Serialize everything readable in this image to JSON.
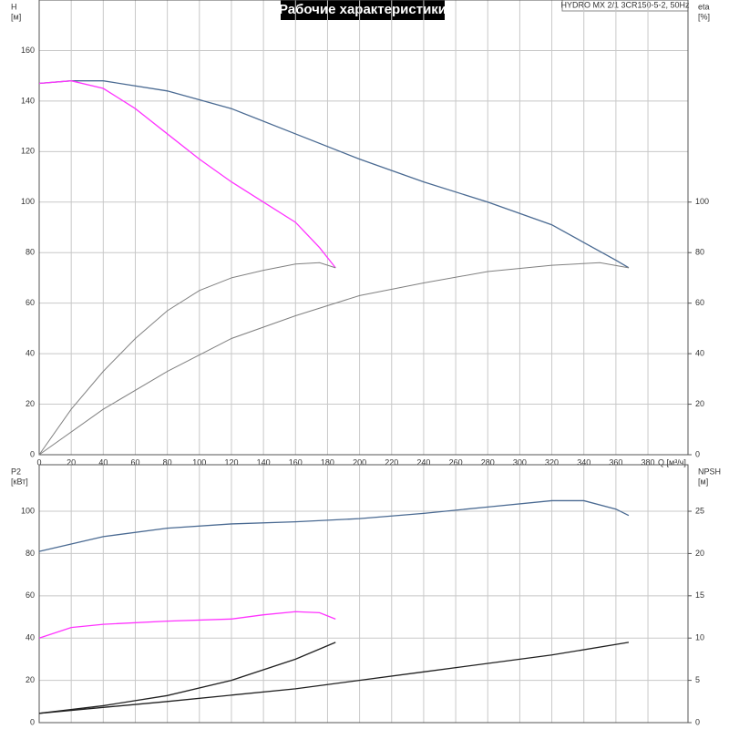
{
  "chart_data": [
    {
      "type": "line",
      "title": "Рабочие характеристики",
      "subtitle": "HYDRO MX 2/1 3CR150-5-2, 50Hz",
      "ylabel": "H",
      "ylabel_unit": "[м]",
      "y2label": "eta",
      "y2label_unit": "[%]",
      "xlabel": "Q [м³/ч]",
      "xlim": [
        0,
        405
      ],
      "ylim": [
        0,
        180
      ],
      "y2lim": [
        0,
        180
      ],
      "xticks": [
        0,
        20,
        40,
        60,
        80,
        100,
        120,
        140,
        160,
        180,
        200,
        220,
        240,
        260,
        280,
        300,
        320,
        340,
        360,
        380
      ],
      "yticks": [
        0,
        20,
        40,
        60,
        80,
        100,
        120,
        140,
        160
      ],
      "y2ticks": [
        0,
        20,
        40,
        60,
        80,
        100
      ],
      "grid": true,
      "xtick_labels": true,
      "series": [
        {
          "color": "#4a6a92",
          "x": [
            0,
            20,
            40,
            80,
            120,
            160,
            200,
            240,
            280,
            320,
            340,
            360,
            368
          ],
          "values": [
            147,
            148,
            148,
            144,
            137,
            127,
            117,
            108,
            100,
            91,
            84,
            77,
            74
          ]
        },
        {
          "color": "#ff33ff",
          "x": [
            0,
            20,
            40,
            60,
            80,
            100,
            120,
            140,
            160,
            175,
            185
          ],
          "values": [
            147,
            148,
            145,
            137,
            127,
            117,
            108,
            100,
            92,
            82,
            74
          ]
        },
        {
          "color": "#808080",
          "axis": "y2",
          "x": [
            0,
            20,
            40,
            60,
            80,
            100,
            120,
            140,
            160,
            175,
            185
          ],
          "values": [
            0,
            18,
            33,
            46,
            57,
            65,
            70,
            73,
            75.5,
            76,
            74
          ]
        },
        {
          "color": "#808080",
          "axis": "y2",
          "x": [
            0,
            40,
            80,
            120,
            160,
            200,
            240,
            280,
            320,
            350,
            368
          ],
          "values": [
            0,
            18,
            33,
            46,
            55,
            63,
            68,
            72.5,
            75,
            76,
            74
          ]
        }
      ]
    },
    {
      "type": "line",
      "ylabel": "P2",
      "ylabel_unit": "[кВт]",
      "y2label": "NPSH",
      "y2label_unit": "[м]",
      "xlim": [
        0,
        405
      ],
      "ylim": [
        0,
        122
      ],
      "y2lim": [
        0,
        30.5
      ],
      "xticks": [
        0,
        20,
        40,
        60,
        80,
        100,
        120,
        140,
        160,
        180,
        200,
        220,
        240,
        260,
        280,
        300,
        320,
        340,
        360,
        380
      ],
      "yticks": [
        0,
        20,
        40,
        60,
        80,
        100
      ],
      "y2ticks": [
        0,
        5,
        10,
        15,
        20,
        25
      ],
      "grid": true,
      "xtick_labels": false,
      "series": [
        {
          "color": "#4a6a92",
          "x": [
            0,
            40,
            80,
            120,
            160,
            200,
            240,
            280,
            320,
            340,
            360,
            368
          ],
          "values": [
            81,
            88,
            92,
            94,
            95,
            96.5,
            99,
            102,
            105,
            105,
            101,
            98
          ]
        },
        {
          "color": "#ff33ff",
          "x": [
            0,
            20,
            40,
            80,
            120,
            140,
            160,
            175,
            185
          ],
          "values": [
            40,
            45,
            46.5,
            48,
            49,
            51,
            52.5,
            52,
            49
          ]
        },
        {
          "color": "#202020",
          "axis": "y2",
          "x": [
            0,
            40,
            80,
            120,
            160,
            185
          ],
          "values": [
            1.1,
            2,
            3.2,
            5,
            7.5,
            9.5
          ]
        },
        {
          "color": "#202020",
          "axis": "y2",
          "x": [
            0,
            80,
            160,
            240,
            320,
            368
          ],
          "values": [
            1.1,
            2.5,
            4,
            6,
            8,
            9.5
          ]
        }
      ]
    }
  ]
}
